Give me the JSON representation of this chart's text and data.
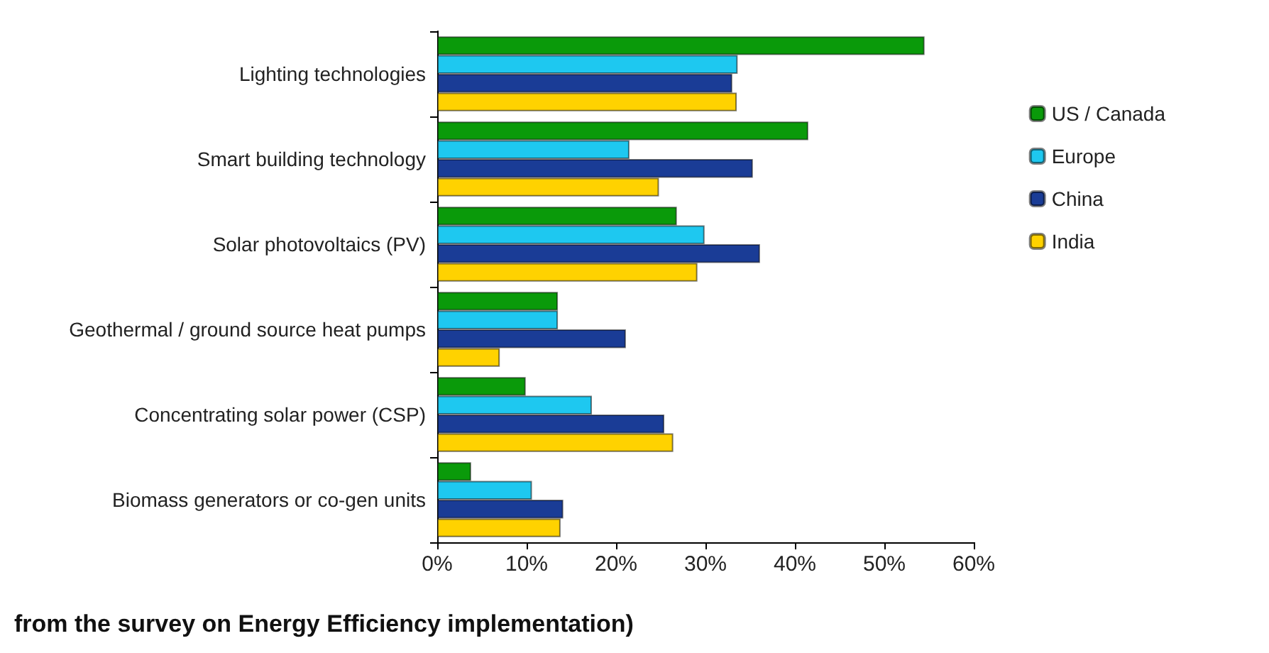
{
  "chart_data": {
    "type": "bar",
    "orientation": "horizontal",
    "categories": [
      "Lighting technologies",
      "Smart building technology",
      "Solar photovoltaics (PV)",
      "Geothermal / ground source heat pumps",
      "Concentrating solar power (CSP)",
      "Biomass generators or co-gen units"
    ],
    "series": [
      {
        "name": "US / Canada",
        "color": "#0a9a0a",
        "values": [
          54.5,
          41.5,
          26.8,
          13.5,
          9.9,
          3.8
        ]
      },
      {
        "name": "Europe",
        "color": "#1ec8f0",
        "values": [
          33.6,
          21.5,
          29.9,
          13.5,
          17.3,
          10.6
        ]
      },
      {
        "name": "China",
        "color": "#1a3c96",
        "values": [
          33.0,
          35.3,
          36.1,
          21.1,
          25.4,
          14.1
        ]
      },
      {
        "name": "India",
        "color": "#ffd200",
        "values": [
          33.5,
          24.8,
          29.1,
          7.0,
          26.4,
          13.8
        ]
      }
    ],
    "xlim": [
      0,
      60
    ],
    "xticks": [
      {
        "value": 0,
        "label": "0%"
      },
      {
        "value": 10,
        "label": "10%"
      },
      {
        "value": 20,
        "label": "20%"
      },
      {
        "value": 30,
        "label": "30%"
      },
      {
        "value": 40,
        "label": "40%"
      },
      {
        "value": 50,
        "label": "50%"
      },
      {
        "value": 60,
        "label": "60%"
      }
    ],
    "grid": false,
    "legend": "right",
    "annotations": [
      "from the survey on Energy Efficiency implementation)"
    ]
  }
}
